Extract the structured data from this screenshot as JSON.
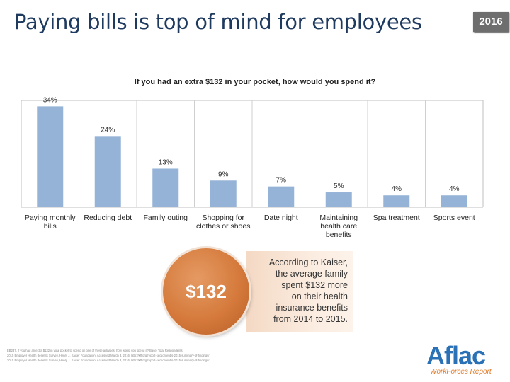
{
  "page": {
    "title": "Paying bills is top of mind for employees",
    "year_badge": "2016"
  },
  "chart_data": {
    "type": "bar",
    "title": "If you had an extra $132 in your pocket, how would you spend it?",
    "categories": [
      "Paying monthly bills",
      "Reducing debt",
      "Family outing",
      "Shopping for clothes or shoes",
      "Date night",
      "Maintaining health care benefits",
      "Spa treatment",
      "Sports event"
    ],
    "category_lines": [
      [
        "Paying monthly",
        "bills"
      ],
      [
        "Reducing debt"
      ],
      [
        "Family outing"
      ],
      [
        "Shopping for",
        "clothes or shoes"
      ],
      [
        "Date night"
      ],
      [
        "Maintaining",
        "health care",
        "benefits"
      ],
      [
        "Spa treatment"
      ],
      [
        "Sports event"
      ]
    ],
    "values": [
      34,
      24,
      13,
      9,
      7,
      5,
      4,
      4
    ],
    "labels": [
      "34%",
      "24%",
      "13%",
      "9%",
      "7%",
      "5%",
      "4%",
      "4%"
    ],
    "ylim": [
      0,
      36
    ],
    "bar_color": "#95b3d7",
    "grid": "vertical separators"
  },
  "callout": {
    "amount": "$132",
    "lines": [
      "According to Kaiser,",
      "the average family",
      "spent $132 more",
      "on their health",
      "insurance benefits",
      "from 2014 to 2015."
    ]
  },
  "footnotes": [
    "EB237. If you had an extra $132 in your pocket to spend on one of these activities, how would you spend it? Base: Total Respondents.",
    "2015 Employer Health Benefits Survey, Henry J. Kaiser Foundation. Accessed March 3, 2016. http://kff.org/report-section/ehbs-2015-summary-of-findings/",
    "2015 Employer Health Benefits Survey, Henry J. Kaiser Foundation. Accessed March 3, 2016. http://kff.org/report-section/ehbs-2015-summary-of-findings/"
  ],
  "logo": {
    "name": "Aflac",
    "subtitle": "WorkForces Report"
  }
}
